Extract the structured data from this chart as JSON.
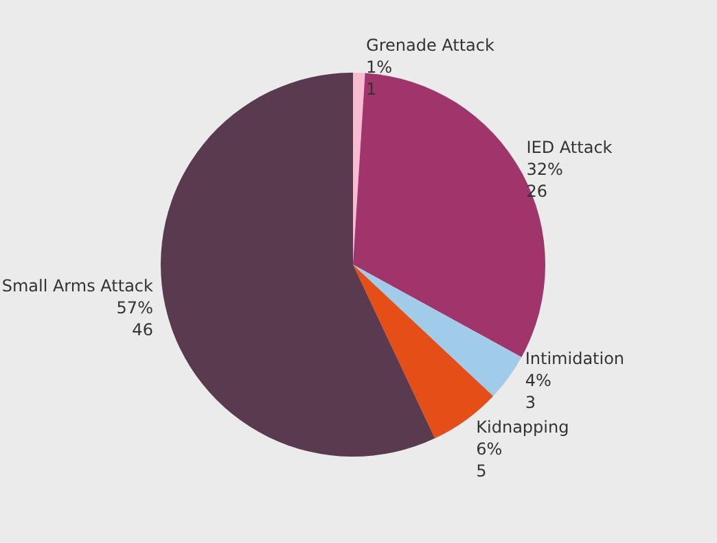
{
  "chart_data": {
    "type": "pie",
    "categories": [
      "Grenade Attack",
      "IED Attack",
      "Intimidation",
      "Kidnapping",
      "Small Arms Attack"
    ],
    "values": [
      1,
      32,
      4,
      6,
      57
    ],
    "value_labels": [
      "1%\n1",
      "32%\n26",
      "4%\n3",
      "6%\n5",
      "57%\n46"
    ],
    "colors": [
      "#f7bccf",
      "#a0356b",
      "#a0cce9",
      "#e54f17",
      "#5a3a4f"
    ],
    "legend": false
  }
}
